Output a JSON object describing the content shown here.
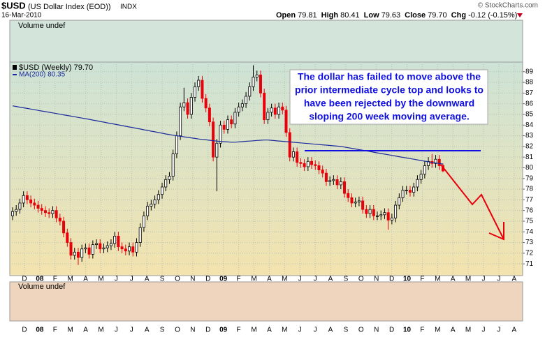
{
  "header": {
    "symbol": "$USD",
    "name": "(US Dollar Index (EOD))",
    "exchange": "INDX",
    "date": "16-Mar-2010",
    "copyright": "© StockCharts.com",
    "quote": [
      {
        "label": "Open",
        "value": "79.81"
      },
      {
        "label": "High",
        "value": "80.41"
      },
      {
        "label": "Low",
        "value": "79.63"
      },
      {
        "label": "Close",
        "value": "79.70"
      },
      {
        "label": "Chg",
        "value": "-0.12 (-0.15%)"
      }
    ]
  },
  "chart_data": {
    "type": "candlestick",
    "legend": "$USD (Weekly) 79.70",
    "ma_label": "MA(200) 80.35",
    "volume_label": "Volume undef",
    "up_color": "#000000",
    "down_color": "#e8000b",
    "ma_color": "#1c2a9c",
    "open": [
      75.5,
      75.9,
      76.1,
      76.7,
      77.4,
      77.0,
      76.7,
      76.5,
      76.2,
      76.0,
      75.8,
      75.7,
      76.0,
      75.3,
      75.0,
      73.9,
      73.0,
      71.8,
      72.1,
      71.6,
      72.4,
      72.5,
      71.9,
      72.8,
      72.9,
      72.4,
      72.5,
      72.7,
      72.9,
      73.6,
      72.6,
      72.4,
      72.2,
      72.6,
      72.1,
      73.0,
      74.4,
      75.5,
      76.4,
      76.6,
      77.0,
      77.5,
      78.2,
      78.9,
      79.2,
      81.3,
      83.0,
      85.7,
      86.1,
      85.0,
      86.6,
      87.6,
      88.2,
      86.5,
      85.6,
      84.3,
      81.0,
      82.3,
      84.0,
      83.6,
      84.5,
      84.1,
      85.2,
      85.7,
      86.0,
      86.7,
      87.6,
      88.5,
      88.7,
      87.0,
      84.5,
      85.2,
      85.6,
      85.0,
      85.7,
      85.4,
      83.3,
      81.0,
      81.5,
      80.5,
      80.4,
      80.1,
      80.6,
      80.3,
      80.2,
      79.8,
      79.5,
      78.7,
      78.8,
      78.9,
      78.4,
      78.7,
      77.6,
      77.2,
      76.7,
      76.8,
      76.9,
      76.1,
      75.7,
      76.1,
      75.5,
      75.5,
      75.6,
      75.8,
      75.1,
      75.3,
      76.5,
      77.2,
      77.9,
      77.9,
      77.7,
      78.2,
      78.9,
      79.4,
      80.2,
      80.6,
      80.4,
      80.8,
      80.2
    ],
    "high": [
      76.3,
      76.5,
      77.1,
      77.8,
      77.8,
      77.4,
      77.1,
      76.9,
      76.6,
      76.4,
      76.2,
      76.4,
      76.4,
      75.7,
      75.4,
      74.3,
      73.4,
      72.5,
      72.5,
      72.8,
      72.9,
      72.9,
      73.2,
      73.3,
      73.3,
      72.9,
      73.1,
      73.3,
      74.0,
      74.0,
      73.0,
      72.8,
      73.0,
      73.0,
      73.4,
      74.8,
      75.9,
      76.8,
      77.0,
      77.4,
      77.9,
      78.6,
      79.3,
      79.6,
      81.7,
      83.4,
      86.1,
      87.5,
      86.5,
      87.0,
      88.0,
      88.6,
      88.6,
      86.9,
      86.0,
      84.7,
      82.7,
      84.4,
      84.4,
      84.9,
      84.9,
      85.6,
      86.1,
      86.4,
      87.1,
      88.0,
      89.6,
      89.1,
      89.1,
      87.4,
      85.6,
      86.0,
      86.0,
      86.1,
      86.1,
      85.8,
      83.7,
      81.9,
      81.9,
      80.9,
      80.8,
      81.0,
      81.0,
      80.7,
      80.6,
      80.2,
      79.9,
      79.2,
      79.3,
      79.3,
      79.1,
      79.1,
      78.0,
      77.6,
      77.2,
      77.3,
      77.3,
      76.5,
      76.5,
      76.5,
      75.9,
      76.0,
      76.2,
      76.2,
      75.7,
      76.9,
      77.6,
      78.3,
      78.3,
      78.3,
      78.6,
      79.3,
      79.8,
      80.6,
      81.0,
      81.3,
      81.2,
      81.2,
      80.4
    ],
    "low": [
      75.1,
      75.5,
      75.7,
      76.3,
      76.6,
      76.3,
      76.1,
      75.8,
      75.6,
      75.4,
      75.3,
      75.3,
      74.9,
      74.6,
      73.5,
      72.6,
      71.4,
      71.4,
      70.9,
      71.2,
      72.0,
      71.5,
      71.5,
      72.4,
      72.0,
      72.0,
      72.1,
      72.3,
      72.5,
      72.2,
      72.0,
      71.8,
      71.8,
      71.7,
      71.7,
      72.6,
      74.0,
      75.1,
      76.0,
      76.2,
      76.6,
      77.1,
      77.8,
      78.5,
      78.8,
      80.9,
      82.6,
      85.3,
      84.6,
      84.6,
      86.2,
      87.2,
      86.1,
      85.2,
      83.9,
      80.6,
      77.8,
      81.9,
      83.2,
      83.2,
      83.7,
      83.7,
      84.8,
      85.3,
      85.6,
      86.3,
      87.2,
      88.1,
      86.6,
      84.1,
      84.1,
      84.8,
      84.6,
      84.6,
      85.0,
      82.9,
      80.6,
      80.6,
      80.1,
      80.0,
      79.7,
      79.7,
      79.9,
      79.8,
      79.4,
      79.1,
      78.3,
      78.3,
      78.4,
      78.0,
      78.0,
      77.2,
      76.8,
      76.3,
      76.3,
      76.4,
      75.7,
      75.3,
      75.3,
      75.1,
      75.1,
      75.1,
      75.2,
      74.2,
      74.7,
      74.9,
      76.1,
      76.8,
      77.5,
      77.3,
      77.3,
      77.8,
      78.5,
      79.0,
      79.8,
      80.0,
      80.0,
      79.8,
      79.6
    ],
    "close": [
      75.9,
      76.1,
      76.7,
      77.4,
      77.0,
      76.7,
      76.5,
      76.2,
      76.0,
      75.8,
      75.7,
      76.0,
      75.3,
      75.0,
      73.9,
      73.0,
      71.8,
      72.1,
      71.6,
      72.4,
      72.5,
      71.9,
      72.8,
      72.9,
      72.4,
      72.5,
      72.7,
      72.9,
      73.6,
      72.6,
      72.4,
      72.2,
      72.6,
      72.1,
      73.0,
      74.4,
      75.5,
      76.4,
      76.6,
      77.0,
      77.5,
      78.2,
      78.9,
      79.2,
      81.3,
      83.0,
      85.7,
      86.1,
      85.0,
      86.6,
      87.6,
      88.2,
      86.5,
      85.6,
      84.3,
      81.0,
      82.3,
      84.0,
      83.6,
      84.5,
      84.1,
      85.2,
      85.7,
      86.0,
      86.7,
      87.6,
      88.5,
      88.7,
      87.0,
      84.5,
      85.2,
      85.6,
      85.0,
      85.7,
      85.4,
      83.3,
      81.0,
      81.5,
      80.5,
      80.4,
      80.1,
      80.6,
      80.3,
      80.2,
      79.8,
      79.5,
      78.7,
      78.8,
      78.9,
      78.4,
      78.7,
      77.6,
      77.2,
      76.7,
      76.8,
      76.9,
      76.1,
      75.7,
      76.1,
      75.5,
      75.5,
      75.6,
      75.8,
      75.1,
      75.3,
      76.5,
      77.2,
      77.9,
      77.9,
      77.7,
      78.2,
      78.9,
      79.4,
      80.2,
      80.6,
      80.4,
      80.8,
      80.2,
      79.7
    ],
    "ma": [
      85.8,
      85.74,
      85.68,
      85.62,
      85.56,
      85.5,
      85.44,
      85.38,
      85.32,
      85.26,
      85.2,
      85.14,
      85.08,
      85.02,
      84.96,
      84.9,
      84.84,
      84.78,
      84.72,
      84.66,
      84.6,
      84.54,
      84.47,
      84.41,
      84.34,
      84.28,
      84.21,
      84.15,
      84.08,
      84.02,
      83.95,
      83.89,
      83.82,
      83.76,
      83.69,
      83.63,
      83.56,
      83.5,
      83.43,
      83.37,
      83.3,
      83.24,
      83.17,
      83.11,
      83.05,
      83.0,
      82.95,
      82.9,
      82.85,
      82.8,
      82.75,
      82.7,
      82.66,
      82.62,
      82.58,
      82.54,
      82.5,
      82.47,
      82.44,
      82.42,
      82.4,
      82.4,
      82.42,
      82.45,
      82.48,
      82.5,
      82.53,
      82.56,
      82.58,
      82.6,
      82.6,
      82.57,
      82.54,
      82.51,
      82.48,
      82.45,
      82.42,
      82.39,
      82.36,
      82.33,
      82.3,
      82.27,
      82.24,
      82.21,
      82.18,
      82.15,
      82.12,
      82.09,
      82.06,
      82.03,
      82.0,
      81.94,
      81.88,
      81.82,
      81.76,
      81.7,
      81.64,
      81.58,
      81.52,
      81.46,
      81.4,
      81.34,
      81.28,
      81.22,
      81.16,
      81.1,
      81.04,
      80.98,
      80.92,
      80.86,
      80.8,
      80.74,
      80.68,
      80.62,
      80.56,
      80.5,
      80.45,
      80.4,
      80.35
    ],
    "ylim": [
      69.9,
      89.9
    ],
    "yticks": [
      71,
      72,
      73,
      74,
      75,
      76,
      77,
      78,
      79,
      80,
      81,
      82,
      83,
      84,
      85,
      86,
      87,
      88,
      89
    ],
    "grid": true,
    "x_labels": [
      "D",
      "08",
      "F",
      "M",
      "A",
      "M",
      "J",
      "J",
      "A",
      "S",
      "O",
      "N",
      "D",
      "09",
      "F",
      "M",
      "A",
      "M",
      "J",
      "J",
      "A",
      "S",
      "O",
      "N",
      "D",
      "10",
      "F",
      "M",
      "A",
      "M",
      "J",
      "J",
      "A"
    ],
    "annotation": [
      "The dollar has failed to move above the",
      "prior intermediate cycle top and looks to",
      "have been rejected by the downward",
      "sloping 200 week moving average."
    ]
  }
}
